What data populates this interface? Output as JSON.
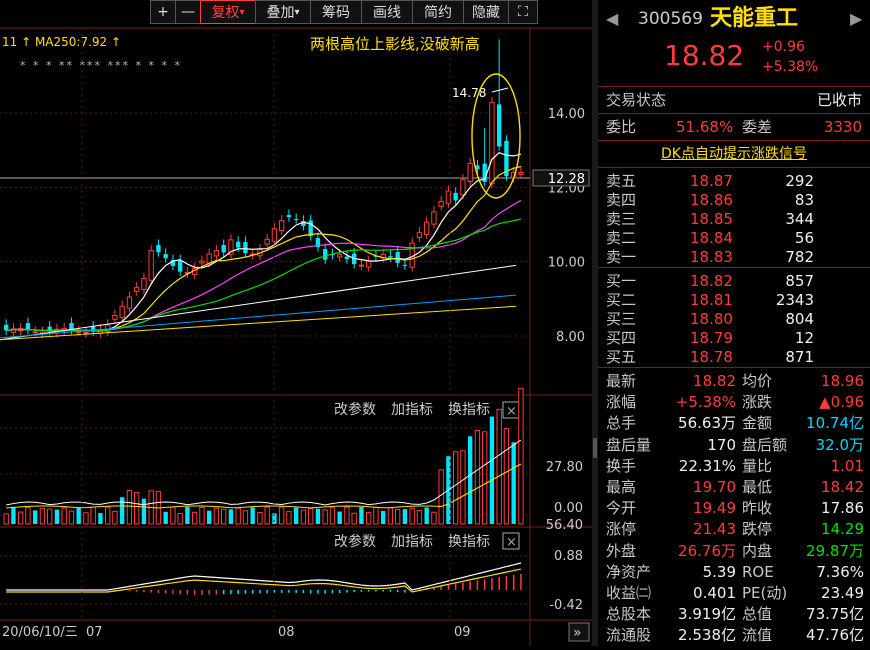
{
  "toolbar": {
    "buttons": [
      "+",
      "—",
      "复权",
      "叠加",
      "筹码",
      "画线",
      "简约",
      "隐藏",
      "⛶"
    ],
    "active_index": 2,
    "dropdown_indices": [
      2,
      3
    ]
  },
  "main_chart": {
    "ma_legend": "11 ↑ MA250:7.92 ↑",
    "annotation": "两根高位上影线,没破新高",
    "price_label_high": "14.78",
    "current_price_tag": "12.28",
    "y_ticks": [
      "14.00",
      "12.00",
      "10.00",
      "8.00"
    ],
    "markers": "* * *  **  ***  ***  *  *  *  *"
  },
  "volume_panel": {
    "controls": [
      "改参数",
      "加指标",
      "换指标"
    ],
    "y_ticks": [
      "56.40",
      "27.80",
      "0.00"
    ]
  },
  "macd_panel": {
    "controls": [
      "改参数",
      "加指标",
      "换指标"
    ],
    "y_ticks": [
      "0.88",
      "-0.42"
    ]
  },
  "x_axis": {
    "labels": [
      "20/06/10/三",
      "07",
      "08",
      "09"
    ],
    "nav": "»"
  },
  "quote": {
    "code": "300569",
    "name": "天能重工",
    "price": "18.82",
    "change": "+0.96",
    "change_pct": "+5.38%",
    "trade_status_label": "交易状态",
    "trade_status": "已收市",
    "weibi_label": "委比",
    "weibi": "51.68%",
    "weicha_label": "委差",
    "weicha": "3330",
    "signal_link": "DK点自动提示涨跌信号",
    "asks": [
      {
        "label": "卖五",
        "price": "18.87",
        "vol": "292"
      },
      {
        "label": "卖四",
        "price": "18.86",
        "vol": "83"
      },
      {
        "label": "卖三",
        "price": "18.85",
        "vol": "344"
      },
      {
        "label": "卖二",
        "price": "18.84",
        "vol": "56"
      },
      {
        "label": "卖一",
        "price": "18.83",
        "vol": "782"
      }
    ],
    "bids": [
      {
        "label": "买一",
        "price": "18.82",
        "vol": "857"
      },
      {
        "label": "买二",
        "price": "18.81",
        "vol": "2343"
      },
      {
        "label": "买三",
        "price": "18.80",
        "vol": "804"
      },
      {
        "label": "买四",
        "price": "18.79",
        "vol": "12"
      },
      {
        "label": "买五",
        "price": "18.78",
        "vol": "871"
      }
    ],
    "stats": [
      {
        "l1": "最新",
        "v1": "18.82",
        "c1": "red",
        "l2": "均价",
        "v2": "18.96",
        "c2": "red"
      },
      {
        "l1": "涨幅",
        "v1": "+5.38%",
        "c1": "red",
        "l2": "涨跌",
        "v2": "▲0.96",
        "c2": "red"
      },
      {
        "l1": "总手",
        "v1": "56.63万",
        "c1": "white",
        "l2": "金额",
        "v2": "10.74亿",
        "c2": "cyan"
      },
      {
        "l1": "盘后量",
        "v1": "170",
        "c1": "white",
        "l2": "盘后额",
        "v2": "32.0万",
        "c2": "cyan"
      },
      {
        "l1": "换手",
        "v1": "22.31%",
        "c1": "white",
        "l2": "量比",
        "v2": "1.01",
        "c2": "red"
      },
      {
        "l1": "最高",
        "v1": "19.70",
        "c1": "red",
        "l2": "最低",
        "v2": "18.42",
        "c2": "red"
      },
      {
        "l1": "今开",
        "v1": "19.49",
        "c1": "red",
        "l2": "昨收",
        "v2": "17.86",
        "c2": "white"
      },
      {
        "l1": "涨停",
        "v1": "21.43",
        "c1": "red",
        "l2": "跌停",
        "v2": "14.29",
        "c2": "green"
      },
      {
        "l1": "外盘",
        "v1": "26.76万",
        "c1": "red",
        "l2": "内盘",
        "v2": "29.87万",
        "c2": "green"
      },
      {
        "l1": "净资产",
        "v1": "5.39",
        "c1": "white",
        "l2": "ROE",
        "v2": "7.36%",
        "c2": "white"
      },
      {
        "l1": "收益㈡",
        "v1": "0.401",
        "c1": "white",
        "l2": "PE(动)",
        "v2": "23.49",
        "c2": "white"
      },
      {
        "l1": "总股本",
        "v1": "3.919亿",
        "c1": "white",
        "l2": "总值",
        "v2": "73.75亿",
        "c2": "white"
      },
      {
        "l1": "流通股",
        "v1": "2.538亿",
        "c1": "white",
        "l2": "流值",
        "v2": "47.76亿",
        "c2": "white"
      }
    ]
  },
  "colors": {
    "up": "#ff3b3b",
    "down": "#00e5ff",
    "ma5": "#ffffff",
    "ma10": "#ffe000",
    "ma20": "#ff40ff",
    "ma30": "#00e000",
    "ma60": "#ffffff",
    "ma120": "#00a0ff",
    "ma250": "#ffe000"
  }
}
